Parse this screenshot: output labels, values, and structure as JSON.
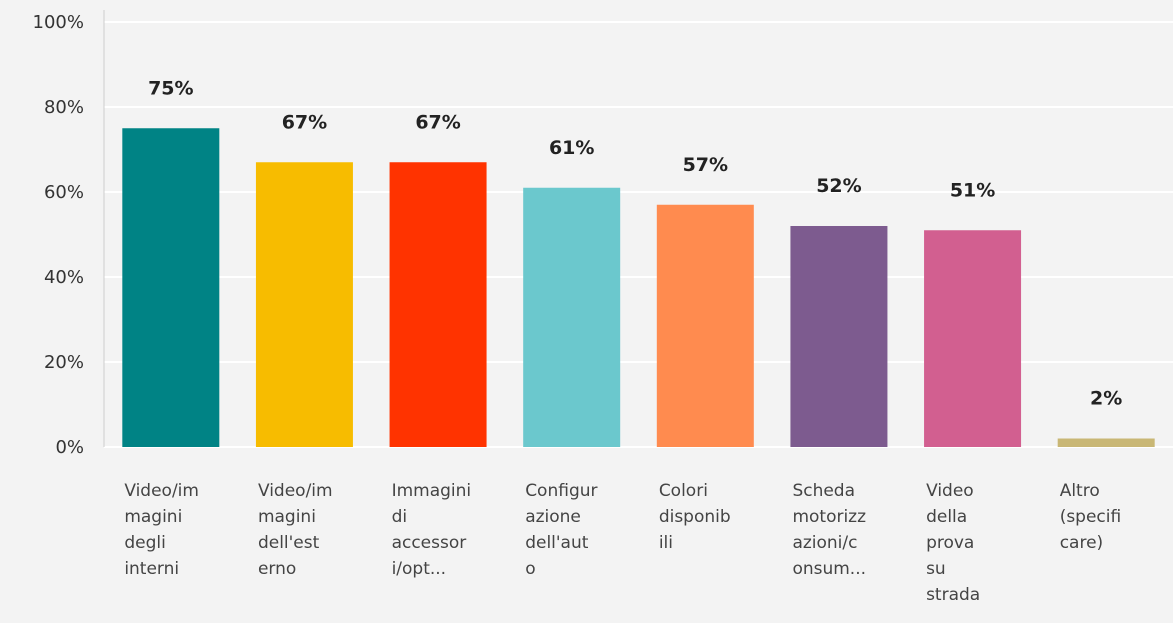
{
  "chart_data": {
    "type": "bar",
    "categories": [
      [
        "Video/im",
        "magini",
        "degli",
        "interni"
      ],
      [
        "Video/im",
        "magini",
        "dell'est",
        "erno"
      ],
      [
        "Immagini",
        "di",
        "accessor",
        "i/opt..."
      ],
      [
        "Configur",
        "azione",
        "dell'aut",
        "o"
      ],
      [
        "Colori",
        "disponib",
        "ili"
      ],
      [
        "Scheda",
        "motorizz",
        "azioni/c",
        "onsum..."
      ],
      [
        "Video",
        "della",
        "prova",
        "su",
        "strada"
      ],
      [
        "Altro",
        "(specifi",
        "care)"
      ]
    ],
    "values": [
      75,
      67,
      67,
      61,
      57,
      52,
      51,
      2
    ],
    "value_labels": [
      "75%",
      "67%",
      "67%",
      "61%",
      "57%",
      "52%",
      "51%",
      "2%"
    ],
    "colors": [
      "#008385",
      "#f7bc00",
      "#ff3300",
      "#6bc8cd",
      "#ff8b4f",
      "#7d5b8f",
      "#d25f90",
      "#c9b775"
    ],
    "ylim": [
      0,
      100
    ],
    "yticks": [
      {
        "value": 0,
        "label": "0%"
      },
      {
        "value": 20,
        "label": "20%"
      },
      {
        "value": 40,
        "label": "40%"
      },
      {
        "value": 60,
        "label": "60%"
      },
      {
        "value": 80,
        "label": "80%"
      },
      {
        "value": 100,
        "label": "100%"
      }
    ],
    "grid": true
  }
}
